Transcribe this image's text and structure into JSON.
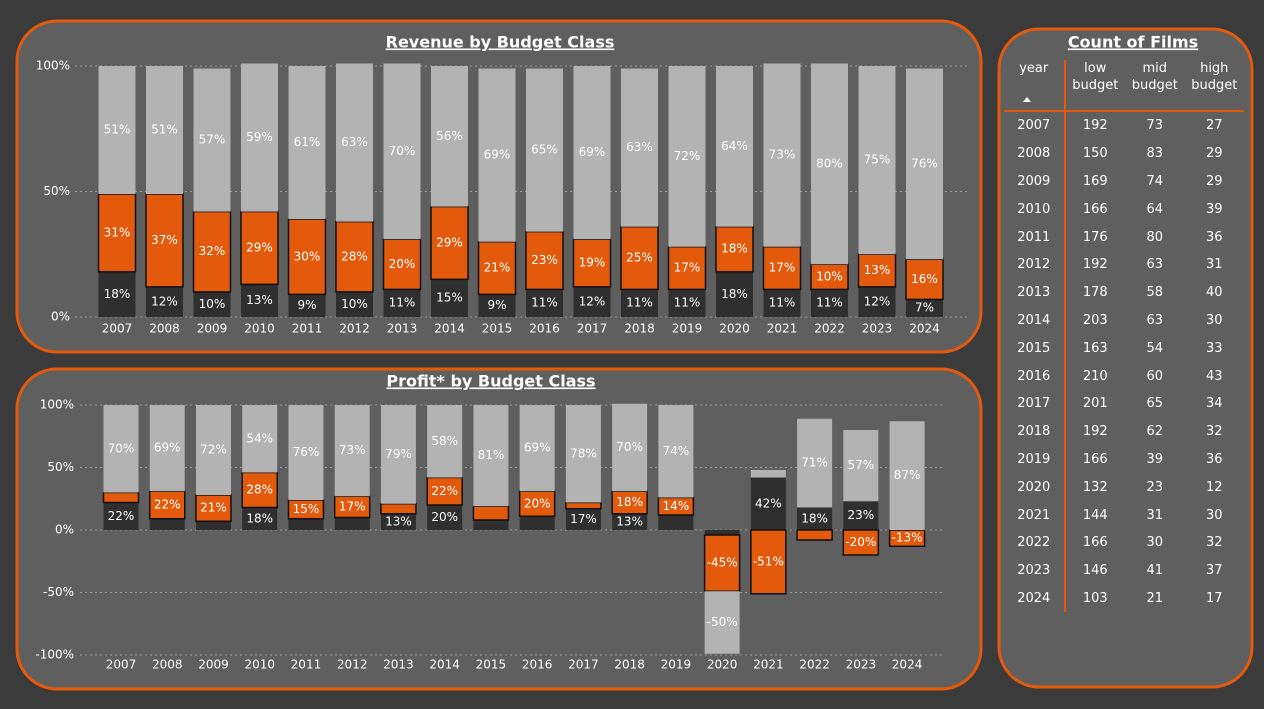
{
  "chart_data": [
    {
      "type": "bar",
      "stacked": true,
      "title": "Revenue by Budget Class",
      "categories": [
        "2007",
        "2008",
        "2009",
        "2010",
        "2011",
        "2012",
        "2013",
        "2014",
        "2015",
        "2016",
        "2017",
        "2018",
        "2019",
        "2020",
        "2021",
        "2022",
        "2023",
        "2024"
      ],
      "series": [
        {
          "color": "#2f2f2f",
          "values": [
            18,
            12,
            10,
            13,
            9,
            10,
            11,
            15,
            9,
            11,
            12,
            11,
            11,
            18,
            11,
            11,
            12,
            7
          ],
          "value_labels": [
            "18%",
            "12%",
            "10%",
            "13%",
            "9%",
            "10%",
            "11%",
            "15%",
            "9%",
            "11%",
            "12%",
            "11%",
            "11%",
            "18%",
            "11%",
            "11%",
            "12%",
            "7%"
          ]
        },
        {
          "color": "#e35a0c",
          "values": [
            31,
            37,
            32,
            29,
            30,
            28,
            20,
            29,
            21,
            23,
            19,
            25,
            17,
            18,
            17,
            10,
            13,
            16
          ],
          "value_labels": [
            "31%",
            "37%",
            "32%",
            "29%",
            "30%",
            "28%",
            "20%",
            "29%",
            "21%",
            "23%",
            "19%",
            "25%",
            "17%",
            "18%",
            "17%",
            "10%",
            "13%",
            "16%"
          ]
        },
        {
          "color": "#b3b3b3",
          "values": [
            51,
            51,
            57,
            59,
            61,
            63,
            70,
            56,
            69,
            65,
            69,
            63,
            72,
            64,
            73,
            80,
            75,
            76
          ],
          "value_labels": [
            "51%",
            "51%",
            "57%",
            "59%",
            "61%",
            "63%",
            "70%",
            "56%",
            "69%",
            "65%",
            "69%",
            "63%",
            "72%",
            "64%",
            "73%",
            "80%",
            "75%",
            "76%"
          ]
        }
      ],
      "ylim": [
        0,
        100
      ],
      "yticks": [
        {
          "value": 0,
          "label": "0%"
        },
        {
          "value": 50,
          "label": "50%"
        },
        {
          "value": 100,
          "label": "100%"
        }
      ],
      "grid": true
    },
    {
      "type": "bar",
      "stacked": true,
      "title": "Profit* by Budget Class",
      "categories": [
        "2007",
        "2008",
        "2009",
        "2010",
        "2011",
        "2012",
        "2013",
        "2014",
        "2015",
        "2016",
        "2017",
        "2018",
        "2019",
        "2020",
        "2021",
        "2022",
        "2023",
        "2024"
      ],
      "series": [
        {
          "color": "#2f2f2f",
          "values": [
            22,
            9,
            7,
            18,
            9,
            10,
            13,
            20,
            8,
            11,
            17,
            13,
            12,
            -4,
            42,
            18,
            23,
            0
          ],
          "value_labels": [
            "22%",
            null,
            null,
            "18%",
            null,
            null,
            "13%",
            "20%",
            null,
            null,
            "17%",
            "13%",
            null,
            null,
            "42%",
            "18%",
            "23%",
            null
          ]
        },
        {
          "color": "#e35a0c",
          "values": [
            8,
            22,
            21,
            28,
            15,
            17,
            8,
            22,
            11,
            20,
            5,
            18,
            14,
            -45,
            -51,
            -8,
            -20,
            -13
          ],
          "value_labels": [
            null,
            "22%",
            "21%",
            "28%",
            "15%",
            "17%",
            null,
            "22%",
            null,
            "20%",
            null,
            "18%",
            "14%",
            "-45%",
            "-51%",
            null,
            "-20%",
            "-13%"
          ]
        },
        {
          "color": "#b3b3b3",
          "values": [
            70,
            69,
            72,
            54,
            76,
            73,
            79,
            58,
            81,
            69,
            78,
            70,
            74,
            -50,
            6,
            71,
            57,
            87
          ],
          "value_labels": [
            "70%",
            "69%",
            "72%",
            "54%",
            "76%",
            "73%",
            "79%",
            "58%",
            "81%",
            "69%",
            "78%",
            "70%",
            "74%",
            "-50%",
            null,
            "71%",
            "57%",
            "87%"
          ]
        }
      ],
      "ylim": [
        -100,
        100
      ],
      "yticks": [
        {
          "value": -100,
          "label": "-100%"
        },
        {
          "value": -50,
          "label": "-50%"
        },
        {
          "value": 0,
          "label": "0%"
        },
        {
          "value": 50,
          "label": "50%"
        },
        {
          "value": 100,
          "label": "100%"
        }
      ],
      "grid": true
    }
  ],
  "table": {
    "title": "Count of Films",
    "columns": [
      "year",
      "low budget",
      "mid budget",
      "high budget"
    ],
    "rows": [
      [
        2007,
        192,
        73,
        27
      ],
      [
        2008,
        150,
        83,
        29
      ],
      [
        2009,
        169,
        74,
        29
      ],
      [
        2010,
        166,
        64,
        39
      ],
      [
        2011,
        176,
        80,
        36
      ],
      [
        2012,
        192,
        63,
        31
      ],
      [
        2013,
        178,
        58,
        40
      ],
      [
        2014,
        203,
        63,
        30
      ],
      [
        2015,
        163,
        54,
        33
      ],
      [
        2016,
        210,
        60,
        43
      ],
      [
        2017,
        201,
        65,
        34
      ],
      [
        2018,
        192,
        62,
        32
      ],
      [
        2019,
        166,
        39,
        36
      ],
      [
        2020,
        132,
        23,
        12
      ],
      [
        2021,
        144,
        31,
        30
      ],
      [
        2022,
        166,
        30,
        32
      ],
      [
        2023,
        146,
        41,
        37
      ],
      [
        2024,
        103,
        21,
        17
      ]
    ]
  }
}
